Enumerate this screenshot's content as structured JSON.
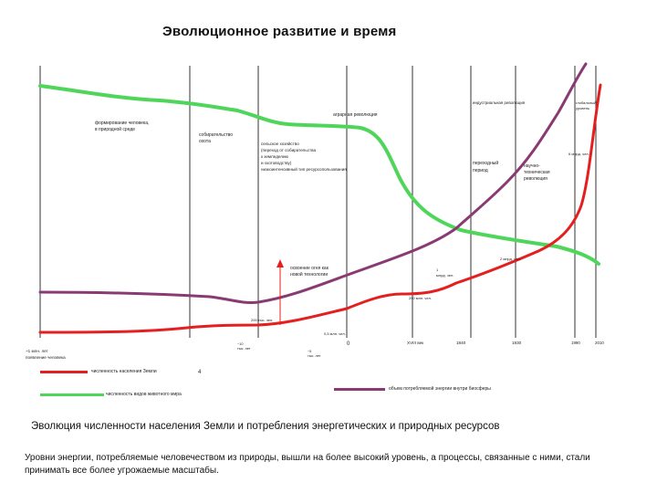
{
  "title": "Эволюционное развитие и время",
  "caption": "Эволюция численности населения Земли и потребления энергетических и природных ресурсов",
  "description": "Уровни энергии, потребляемые человечеством из природы, вышли на более высокий уровень, а процессы, связанные с ними, стали принимать все более угрожаемые масштабы.",
  "stage_labels": [
    "формирование человека в природной среде",
    "собирательство охота",
    "сельское хозяйство (переход от собирательства к земледелию и скотоводству) низкоинтенсивный тип ресурсопользования",
    "аграрная революция",
    "индустриальная революция",
    "переходный период",
    "научно-техническая революция",
    "глобальный уровень",
    "освоение огня как новой технологии"
  ],
  "axis_labels": [
    "~1 млн. лет появление человека",
    "~10 тыс. лет",
    "~5 тыс. лет",
    "0",
    "XVIII век",
    "1840",
    "1930",
    "1990",
    "2010"
  ],
  "annotations": [
    "200 тыс. чел.",
    "0,5 млн. чел.",
    "250 млн. чел.",
    "1 млрд. чел.",
    "6 млрд. чел.",
    "2 млрд. чел.",
    "4"
  ],
  "legend": [
    {
      "label": "численность населения Земли",
      "color": "#e41f1f"
    },
    {
      "label": "численность видов животного мира",
      "color": "#4fd65a"
    },
    {
      "label": "объем потребляемой энергии внутри биосферы",
      "color": "#8a3a73"
    }
  ],
  "colors": {
    "population": "#e41f1f",
    "species": "#4fd65a",
    "energy": "#8a3a73",
    "vlines": "#222222"
  }
}
